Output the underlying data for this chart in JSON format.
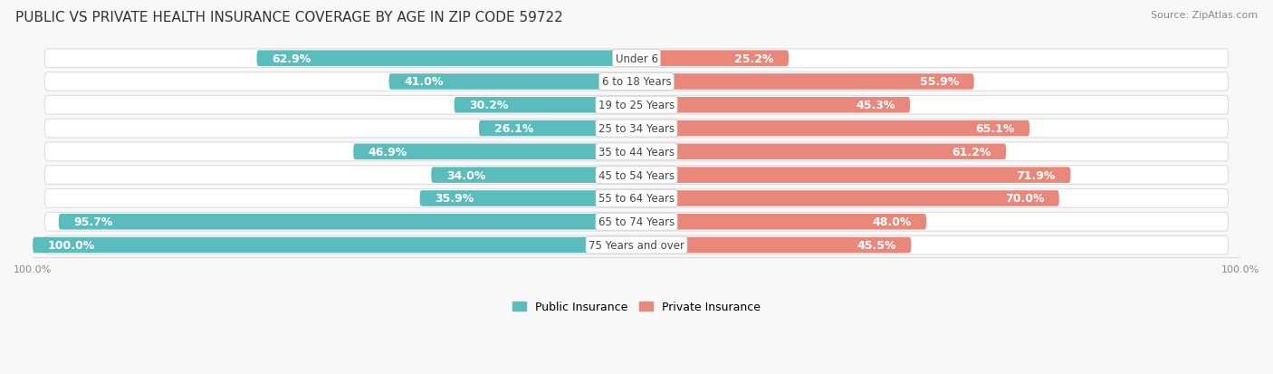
{
  "title": "PUBLIC VS PRIVATE HEALTH INSURANCE COVERAGE BY AGE IN ZIP CODE 59722",
  "source": "Source: ZipAtlas.com",
  "categories": [
    "Under 6",
    "6 to 18 Years",
    "19 to 25 Years",
    "25 to 34 Years",
    "35 to 44 Years",
    "45 to 54 Years",
    "55 to 64 Years",
    "65 to 74 Years",
    "75 Years and over"
  ],
  "public_values": [
    62.9,
    41.0,
    30.2,
    26.1,
    46.9,
    34.0,
    35.9,
    95.7,
    100.0
  ],
  "private_values": [
    25.2,
    55.9,
    45.3,
    65.1,
    61.2,
    71.9,
    70.0,
    48.0,
    45.5
  ],
  "public_color": "#5bbcbe",
  "private_color": "#e8877a",
  "row_bg_color": "#f0f0f0",
  "row_border_color": "#dddddd",
  "title_fontsize": 11,
  "source_fontsize": 8,
  "bar_label_fontsize": 9,
  "category_fontsize": 8.5,
  "legend_fontsize": 9,
  "axis_label_fontsize": 8,
  "max_value": 100.0,
  "figsize": [
    14.06,
    4.14
  ],
  "dpi": 100
}
